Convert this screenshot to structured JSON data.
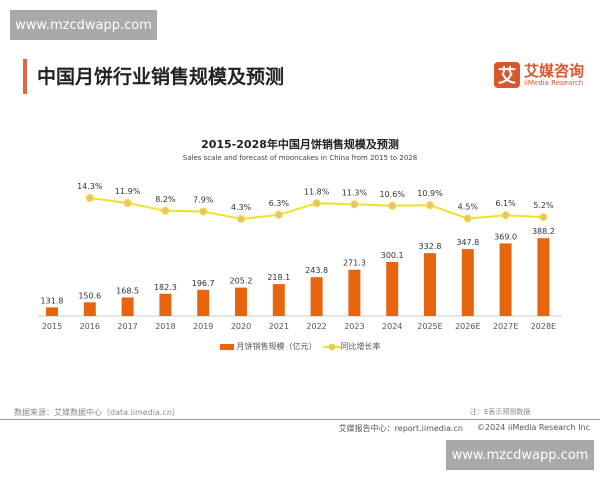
{
  "watermark": "www.mzcdwapp.com",
  "header": {
    "title": "中国月饼行业销售规模及预测",
    "logo_mark": "艾",
    "logo_cn": "艾媒咨询",
    "logo_en": "iiMedia Research"
  },
  "footer": {
    "source": "数据来源：艾媒数据中心（data.iimedia.cn）",
    "note": "注：E表示预测数据",
    "report": "艾媒报告中心：report.iimedia.cn",
    "copyright": "©2024  iiMedia Research  Inc"
  },
  "colors": {
    "bar": "#e8650f",
    "line": "#f0e030",
    "marker": "#e9c27a",
    "accent": "#e2673e"
  },
  "chart_data": {
    "type": "bar+line",
    "title": "2015-2028年中国月饼销售规模及预测",
    "subtitle": "Sales scale and forecast of mooncakes in China from 2015 to 2028",
    "categories": [
      "2015",
      "2016",
      "2017",
      "2018",
      "2019",
      "2020",
      "2021",
      "2022",
      "2023",
      "2024",
      "2025E",
      "2026E",
      "2027E",
      "2028E"
    ],
    "series": [
      {
        "name": "月饼销售规模（亿元）",
        "type": "bar",
        "values": [
          131.8,
          150.6,
          168.5,
          182.3,
          196.7,
          205.2,
          218.1,
          243.8,
          271.3,
          300.1,
          332.8,
          347.8,
          369.0,
          388.2
        ],
        "labels": [
          "131.8",
          "150.6",
          "168.5",
          "182.3",
          "196.7",
          "205.2",
          "218.1",
          "243.8",
          "271.3",
          "300.1",
          "332.8",
          "347.8",
          "369.0",
          "388.2"
        ]
      },
      {
        "name": "同比增长率",
        "type": "line",
        "values": [
          null,
          14.3,
          11.9,
          8.2,
          7.9,
          4.3,
          6.3,
          11.8,
          11.3,
          10.6,
          10.9,
          4.5,
          6.1,
          5.2
        ],
        "labels": [
          "",
          "14.3%",
          "11.9%",
          "8.2%",
          "7.9%",
          "4.3%",
          "6.3%",
          "11.8%",
          "11.3%",
          "10.6%",
          "10.9%",
          "4.5%",
          "6.1%",
          "5.2%"
        ]
      }
    ],
    "grid": false,
    "legend": "bottom"
  }
}
